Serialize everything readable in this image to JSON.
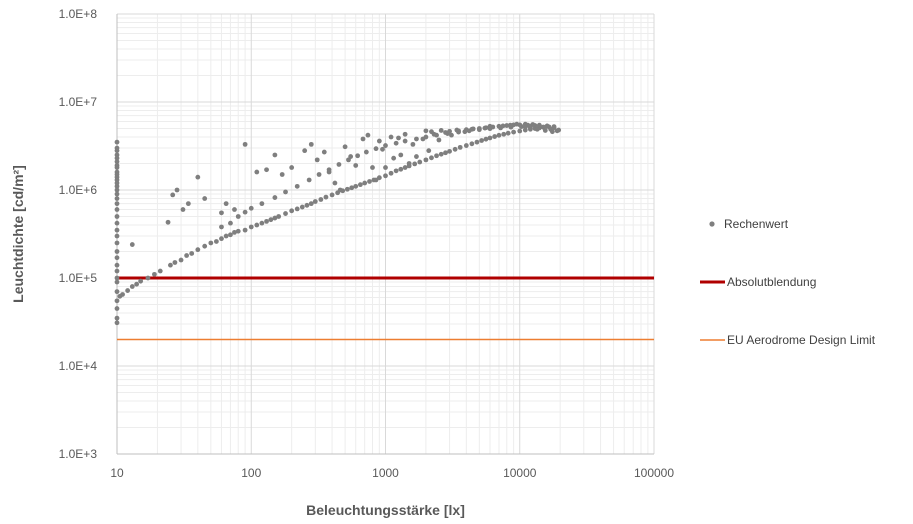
{
  "chart_data": {
    "type": "scatter",
    "title": "",
    "xlabel": "Beleuchtungsstärke [lx]",
    "ylabel": "Leuchtdichte [cd/m²]",
    "x_scale": "log",
    "y_scale": "log",
    "xlim": [
      10,
      100000
    ],
    "ylim": [
      1000,
      100000000
    ],
    "x_tick_labels": [
      "10",
      "100",
      "1000",
      "10000",
      "100000"
    ],
    "y_tick_labels": [
      "1.0E+3",
      "1.0E+4",
      "1.0E+5",
      "1.0E+6",
      "1.0E+7",
      "1.0E+8"
    ],
    "grid": true,
    "legend_position": "right",
    "series": [
      {
        "name": "Rechenwert",
        "kind": "scatter",
        "color": "#7f7f7f",
        "points": [
          [
            10,
            3500000
          ],
          [
            10,
            3000000
          ],
          [
            10,
            2800000
          ],
          [
            10,
            2500000
          ],
          [
            10,
            2300000
          ],
          [
            10,
            2100000
          ],
          [
            10,
            1900000
          ],
          [
            10,
            1800000
          ],
          [
            10,
            1600000
          ],
          [
            10,
            1500000
          ],
          [
            10,
            1400000
          ],
          [
            10,
            1300000
          ],
          [
            10,
            1200000
          ],
          [
            10,
            1100000
          ],
          [
            10,
            1000000
          ],
          [
            10,
            900000
          ],
          [
            10,
            800000
          ],
          [
            10,
            700000
          ],
          [
            10,
            600000
          ],
          [
            10,
            500000
          ],
          [
            10,
            420000
          ],
          [
            10,
            350000
          ],
          [
            10,
            300000
          ],
          [
            10,
            250000
          ],
          [
            10,
            200000
          ],
          [
            10,
            170000
          ],
          [
            10,
            140000
          ],
          [
            10,
            120000
          ],
          [
            10,
            100000
          ],
          [
            10,
            90000
          ],
          [
            10,
            70000
          ],
          [
            10,
            55000
          ],
          [
            10,
            45000
          ],
          [
            10,
            35000
          ],
          [
            10,
            31000
          ],
          [
            10.5,
            62000
          ],
          [
            11,
            65000
          ],
          [
            12,
            72000
          ],
          [
            13,
            80000
          ],
          [
            14,
            85000
          ],
          [
            15,
            92000
          ],
          [
            17,
            100000
          ],
          [
            19,
            110000
          ],
          [
            21,
            120000
          ],
          [
            13,
            240000
          ],
          [
            24,
            430000
          ],
          [
            26,
            880000
          ],
          [
            28,
            1000000
          ],
          [
            31,
            600000
          ],
          [
            34,
            700000
          ],
          [
            40,
            1400000
          ],
          [
            45,
            800000
          ],
          [
            25,
            140000
          ],
          [
            27,
            150000
          ],
          [
            30,
            160000
          ],
          [
            33,
            180000
          ],
          [
            36,
            190000
          ],
          [
            40,
            210000
          ],
          [
            45,
            230000
          ],
          [
            50,
            250000
          ],
          [
            55,
            260000
          ],
          [
            60,
            280000
          ],
          [
            65,
            300000
          ],
          [
            70,
            310000
          ],
          [
            75,
            330000
          ],
          [
            80,
            340000
          ],
          [
            90,
            350000
          ],
          [
            100,
            380000
          ],
          [
            110,
            400000
          ],
          [
            120,
            420000
          ],
          [
            130,
            440000
          ],
          [
            140,
            460000
          ],
          [
            150,
            480000
          ],
          [
            160,
            500000
          ],
          [
            180,
            540000
          ],
          [
            200,
            580000
          ],
          [
            220,
            610000
          ],
          [
            240,
            640000
          ],
          [
            260,
            670000
          ],
          [
            280,
            700000
          ],
          [
            300,
            740000
          ],
          [
            330,
            780000
          ],
          [
            360,
            830000
          ],
          [
            400,
            880000
          ],
          [
            440,
            930000
          ],
          [
            480,
            980000
          ],
          [
            520,
            1020000
          ],
          [
            560,
            1060000
          ],
          [
            600,
            1100000
          ],
          [
            650,
            1150000
          ],
          [
            700,
            1200000
          ],
          [
            760,
            1250000
          ],
          [
            820,
            1300000
          ],
          [
            900,
            1380000
          ],
          [
            1000,
            1450000
          ],
          [
            1100,
            1550000
          ],
          [
            1200,
            1650000
          ],
          [
            1300,
            1720000
          ],
          [
            1400,
            1800000
          ],
          [
            1500,
            1880000
          ],
          [
            1650,
            1980000
          ],
          [
            1800,
            2080000
          ],
          [
            2000,
            2200000
          ],
          [
            2200,
            2320000
          ],
          [
            2400,
            2450000
          ],
          [
            2600,
            2550000
          ],
          [
            2800,
            2650000
          ],
          [
            3000,
            2750000
          ],
          [
            3300,
            2900000
          ],
          [
            3600,
            3050000
          ],
          [
            4000,
            3200000
          ],
          [
            4400,
            3350000
          ],
          [
            4800,
            3500000
          ],
          [
            5200,
            3650000
          ],
          [
            5600,
            3780000
          ],
          [
            6000,
            3900000
          ],
          [
            6500,
            4050000
          ],
          [
            7000,
            4180000
          ],
          [
            7600,
            4300000
          ],
          [
            8200,
            4420000
          ],
          [
            9000,
            4550000
          ],
          [
            10000,
            4680000
          ],
          [
            11000,
            4800000
          ],
          [
            12000,
            4900000
          ],
          [
            13000,
            5000000
          ],
          [
            14000,
            5080000
          ],
          [
            15000,
            5150000
          ],
          [
            16500,
            5220000
          ],
          [
            18000,
            5250000
          ],
          [
            60,
            380000
          ],
          [
            70,
            420000
          ],
          [
            80,
            500000
          ],
          [
            90,
            560000
          ],
          [
            100,
            620000
          ],
          [
            120,
            700000
          ],
          [
            150,
            820000
          ],
          [
            180,
            950000
          ],
          [
            220,
            1100000
          ],
          [
            270,
            1300000
          ],
          [
            320,
            1500000
          ],
          [
            380,
            1700000
          ],
          [
            450,
            1950000
          ],
          [
            530,
            2200000
          ],
          [
            620,
            2450000
          ],
          [
            720,
            2700000
          ],
          [
            850,
            2950000
          ],
          [
            1000,
            3200000
          ],
          [
            1200,
            3400000
          ],
          [
            1400,
            3600000
          ],
          [
            1700,
            3800000
          ],
          [
            2000,
            4000000
          ],
          [
            2400,
            4200000
          ],
          [
            2900,
            4380000
          ],
          [
            3500,
            4550000
          ],
          [
            4200,
            4700000
          ],
          [
            5000,
            4850000
          ],
          [
            6000,
            4980000
          ],
          [
            7200,
            5080000
          ],
          [
            8600,
            5180000
          ],
          [
            10300,
            5260000
          ],
          [
            12000,
            5300000
          ],
          [
            14000,
            5320000
          ],
          [
            16000,
            5300000
          ],
          [
            60,
            550000
          ],
          [
            65,
            700000
          ],
          [
            75,
            600000
          ],
          [
            90,
            3300000
          ],
          [
            110,
            1600000
          ],
          [
            130,
            1700000
          ],
          [
            150,
            2500000
          ],
          [
            170,
            1500000
          ],
          [
            200,
            1800000
          ],
          [
            250,
            2800000
          ],
          [
            280,
            3300000
          ],
          [
            310,
            2200000
          ],
          [
            350,
            2700000
          ],
          [
            380,
            1600000
          ],
          [
            420,
            1200000
          ],
          [
            460,
            1000000
          ],
          [
            500,
            3100000
          ],
          [
            550,
            2400000
          ],
          [
            600,
            1900000
          ],
          [
            680,
            3800000
          ],
          [
            740,
            4200000
          ],
          [
            800,
            1800000
          ],
          [
            850,
            1300000
          ],
          [
            900,
            3600000
          ],
          [
            950,
            2900000
          ],
          [
            1000,
            1800000
          ],
          [
            1100,
            4000000
          ],
          [
            1150,
            2300000
          ],
          [
            1250,
            3900000
          ],
          [
            1300,
            2500000
          ],
          [
            1400,
            4300000
          ],
          [
            1500,
            2000000
          ],
          [
            1600,
            3300000
          ],
          [
            1700,
            2400000
          ],
          [
            1900,
            3800000
          ],
          [
            2100,
            2800000
          ],
          [
            2300,
            4300000
          ],
          [
            2500,
            3700000
          ],
          [
            2800,
            4500000
          ],
          [
            3100,
            4200000
          ],
          [
            3500,
            4700000
          ],
          [
            3900,
            4600000
          ],
          [
            4400,
            4900000
          ],
          [
            5000,
            5000000
          ],
          [
            5600,
            5100000
          ],
          [
            6300,
            5200000
          ],
          [
            7000,
            5300000
          ],
          [
            8000,
            5400000
          ],
          [
            9000,
            5500000
          ],
          [
            10000,
            5500000
          ],
          [
            11500,
            5450000
          ],
          [
            13000,
            5400000
          ],
          [
            15000,
            5200000
          ],
          [
            17000,
            4900000
          ],
          [
            19000,
            4700000
          ],
          [
            2000,
            4700000
          ],
          [
            2200,
            4600000
          ],
          [
            2600,
            4750000
          ],
          [
            3000,
            4650000
          ],
          [
            3400,
            4800000
          ],
          [
            4000,
            4850000
          ],
          [
            4500,
            4950000
          ],
          [
            5500,
            5050000
          ],
          [
            6000,
            5300000
          ],
          [
            7500,
            5350000
          ],
          [
            8500,
            5450000
          ],
          [
            9500,
            5600000
          ],
          [
            11000,
            5600000
          ],
          [
            12500,
            5550000
          ],
          [
            14000,
            5450000
          ],
          [
            16000,
            5350000
          ],
          [
            18000,
            5100000
          ],
          [
            19500,
            4800000
          ],
          [
            17500,
            4600000
          ],
          [
            15500,
            4750000
          ],
          [
            13500,
            4900000
          ],
          [
            12000,
            5100000
          ],
          [
            11000,
            5200000
          ]
        ]
      },
      {
        "name": "Absolutblendung",
        "kind": "line",
        "color": "#b00000",
        "x": [
          10,
          100000
        ],
        "y": [
          100000,
          100000
        ]
      },
      {
        "name": "EU Aerodrome Design Limit",
        "kind": "line",
        "color": "#ed7d31",
        "x": [
          10,
          100000
        ],
        "y": [
          20000,
          20000
        ]
      }
    ]
  }
}
